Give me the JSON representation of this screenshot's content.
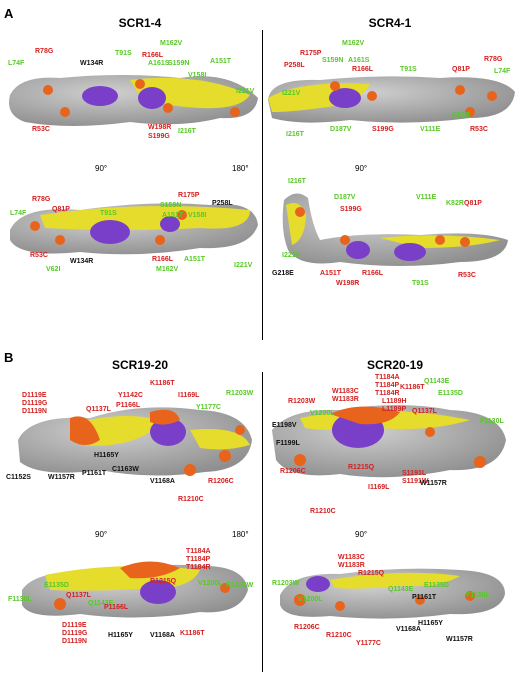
{
  "panels": [
    {
      "letter": "A",
      "titles": [
        "SCR1-4",
        "SCR4-1"
      ],
      "rotations": [
        "90°",
        "180°",
        "90°"
      ],
      "views": [
        {
          "id": "a1",
          "labels": [
            {
              "t": "R78G",
              "c": "red"
            },
            {
              "t": "L74F",
              "c": "green"
            },
            {
              "t": "T91S",
              "c": "green"
            },
            {
              "t": "M162V",
              "c": "green"
            },
            {
              "t": "R166L",
              "c": "red"
            },
            {
              "t": "S159N",
              "c": "green"
            },
            {
              "t": "A161S",
              "c": "green"
            },
            {
              "t": "W134R",
              "c": "black"
            },
            {
              "t": "V158I",
              "c": "green"
            },
            {
              "t": "A151T",
              "c": "green"
            },
            {
              "t": "I221V",
              "c": "green"
            },
            {
              "t": "R53C",
              "c": "red"
            },
            {
              "t": "W198R",
              "c": "red"
            },
            {
              "t": "S199G",
              "c": "red"
            },
            {
              "t": "I216T",
              "c": "green"
            }
          ]
        },
        {
          "id": "a2",
          "labels": [
            {
              "t": "M162V",
              "c": "green"
            },
            {
              "t": "R175P",
              "c": "red"
            },
            {
              "t": "S159N",
              "c": "green"
            },
            {
              "t": "A161S",
              "c": "green"
            },
            {
              "t": "P258L",
              "c": "red"
            },
            {
              "t": "R166L",
              "c": "red"
            },
            {
              "t": "T91S",
              "c": "green"
            },
            {
              "t": "Q81P",
              "c": "red"
            },
            {
              "t": "R78G",
              "c": "red"
            },
            {
              "t": "L74F",
              "c": "green"
            },
            {
              "t": "I221V",
              "c": "green"
            },
            {
              "t": "K82R",
              "c": "green"
            },
            {
              "t": "D187V",
              "c": "green"
            },
            {
              "t": "S199G",
              "c": "red"
            },
            {
              "t": "V111E",
              "c": "green"
            },
            {
              "t": "R53C",
              "c": "red"
            },
            {
              "t": "I216T",
              "c": "green"
            }
          ]
        },
        {
          "id": "a3",
          "labels": [
            {
              "t": "R78G",
              "c": "red"
            },
            {
              "t": "Q81P",
              "c": "red"
            },
            {
              "t": "L74F",
              "c": "green"
            },
            {
              "t": "R175P",
              "c": "red"
            },
            {
              "t": "P258L",
              "c": "black"
            },
            {
              "t": "T91S",
              "c": "green"
            },
            {
              "t": "S159N",
              "c": "green"
            },
            {
              "t": "V158I",
              "c": "green"
            },
            {
              "t": "A151T",
              "c": "green"
            },
            {
              "t": "R53C",
              "c": "red"
            },
            {
              "t": "W134R",
              "c": "black"
            },
            {
              "t": "V62I",
              "c": "green"
            },
            {
              "t": "R166L",
              "c": "red"
            },
            {
              "t": "M162V",
              "c": "green"
            },
            {
              "t": "A151T",
              "c": "green"
            },
            {
              "t": "I221V",
              "c": "green"
            }
          ]
        },
        {
          "id": "a4",
          "labels": [
            {
              "t": "I216T",
              "c": "green"
            },
            {
              "t": "D187V",
              "c": "green"
            },
            {
              "t": "S199G",
              "c": "red"
            },
            {
              "t": "V111E",
              "c": "green"
            },
            {
              "t": "K82R",
              "c": "green"
            },
            {
              "t": "Q81P",
              "c": "red"
            },
            {
              "t": "I221V",
              "c": "green"
            },
            {
              "t": "G218E",
              "c": "black"
            },
            {
              "t": "A151T",
              "c": "red"
            },
            {
              "t": "R166L",
              "c": "red"
            },
            {
              "t": "W198R",
              "c": "red"
            },
            {
              "t": "T91S",
              "c": "green"
            },
            {
              "t": "R53C",
              "c": "red"
            }
          ]
        }
      ]
    },
    {
      "letter": "B",
      "titles": [
        "SCR19-20",
        "SCR20-19"
      ],
      "rotations": [
        "90°",
        "180°",
        "90°"
      ],
      "views": [
        {
          "id": "b1",
          "labels": [
            {
              "t": "D1119E",
              "c": "red"
            },
            {
              "t": "D1119G",
              "c": "red"
            },
            {
              "t": "D1119N",
              "c": "red"
            },
            {
              "t": "Y1142C",
              "c": "red"
            },
            {
              "t": "K1186T",
              "c": "red"
            },
            {
              "t": "P1166L",
              "c": "red"
            },
            {
              "t": "I1169L",
              "c": "red"
            },
            {
              "t": "Q1137L",
              "c": "red"
            },
            {
              "t": "Y1177C",
              "c": "green"
            },
            {
              "t": "R1203W",
              "c": "green"
            },
            {
              "t": "H1165Y",
              "c": "black"
            },
            {
              "t": "C1163W",
              "c": "black"
            },
            {
              "t": "V1168A",
              "c": "black"
            },
            {
              "t": "P1161T",
              "c": "black"
            },
            {
              "t": "W1157R",
              "c": "black"
            },
            {
              "t": "C1152S",
              "c": "black"
            },
            {
              "t": "R1206C",
              "c": "red"
            },
            {
              "t": "R1210C",
              "c": "red"
            }
          ]
        },
        {
          "id": "b2",
          "labels": [
            {
              "t": "T1184A",
              "c": "red"
            },
            {
              "t": "T1184P",
              "c": "red"
            },
            {
              "t": "T1184R",
              "c": "red"
            },
            {
              "t": "K1186T",
              "c": "red"
            },
            {
              "t": "Q1143E",
              "c": "green"
            },
            {
              "t": "W1183C",
              "c": "red"
            },
            {
              "t": "W1183R",
              "c": "red"
            },
            {
              "t": "L1189H",
              "c": "red"
            },
            {
              "t": "L1189P",
              "c": "red"
            },
            {
              "t": "E1135D",
              "c": "green"
            },
            {
              "t": "R1203W",
              "c": "red"
            },
            {
              "t": "V1200L",
              "c": "green"
            },
            {
              "t": "Q1137L",
              "c": "red"
            },
            {
              "t": "E1198V",
              "c": "black"
            },
            {
              "t": "F1130L",
              "c": "green"
            },
            {
              "t": "F1199L",
              "c": "black"
            },
            {
              "t": "R1206C",
              "c": "red"
            },
            {
              "t": "R1215Q",
              "c": "red"
            },
            {
              "t": "I1169L",
              "c": "red"
            },
            {
              "t": "S1191L",
              "c": "red"
            },
            {
              "t": "S1191W",
              "c": "red"
            },
            {
              "t": "W1157R",
              "c": "black"
            },
            {
              "t": "R1210C",
              "c": "red"
            }
          ]
        },
        {
          "id": "b3",
          "labels": [
            {
              "t": "T1184A",
              "c": "red"
            },
            {
              "t": "T1184P",
              "c": "red"
            },
            {
              "t": "T1184R",
              "c": "red"
            },
            {
              "t": "R1215Q",
              "c": "red"
            },
            {
              "t": "E1135D",
              "c": "green"
            },
            {
              "t": "Q1137L",
              "c": "red"
            },
            {
              "t": "Q1143E",
              "c": "green"
            },
            {
              "t": "V1200L",
              "c": "green"
            },
            {
              "t": "R1203W",
              "c": "green"
            },
            {
              "t": "F1130L",
              "c": "green"
            },
            {
              "t": "P1166L",
              "c": "red"
            },
            {
              "t": "D1119E",
              "c": "red"
            },
            {
              "t": "D1119G",
              "c": "red"
            },
            {
              "t": "D1119N",
              "c": "red"
            },
            {
              "t": "H1165Y",
              "c": "black"
            },
            {
              "t": "V1168A",
              "c": "black"
            },
            {
              "t": "K1186T",
              "c": "red"
            }
          ]
        },
        {
          "id": "b4",
          "labels": [
            {
              "t": "W1183C",
              "c": "red"
            },
            {
              "t": "W1183R",
              "c": "red"
            },
            {
              "t": "R1215Q",
              "c": "red"
            },
            {
              "t": "R1203W",
              "c": "green"
            },
            {
              "t": "V1200L",
              "c": "green"
            },
            {
              "t": "Q1143E",
              "c": "green"
            },
            {
              "t": "E1135D",
              "c": "green"
            },
            {
              "t": "P1161T",
              "c": "black"
            },
            {
              "t": "F1130L",
              "c": "green"
            },
            {
              "t": "R1206C",
              "c": "red"
            },
            {
              "t": "R1210C",
              "c": "red"
            },
            {
              "t": "Y1177C",
              "c": "red"
            },
            {
              "t": "V1168A",
              "c": "black"
            },
            {
              "t": "H1165Y",
              "c": "black"
            },
            {
              "t": "W1157R",
              "c": "black"
            }
          ]
        }
      ]
    }
  ],
  "colors": {
    "red": "#d42020",
    "green": "#58c828",
    "black": "#111111",
    "surface": "#a9a9a9",
    "yellow": "#e6dc2c",
    "orange": "#e8641c",
    "purple": "#7a3fc8"
  }
}
